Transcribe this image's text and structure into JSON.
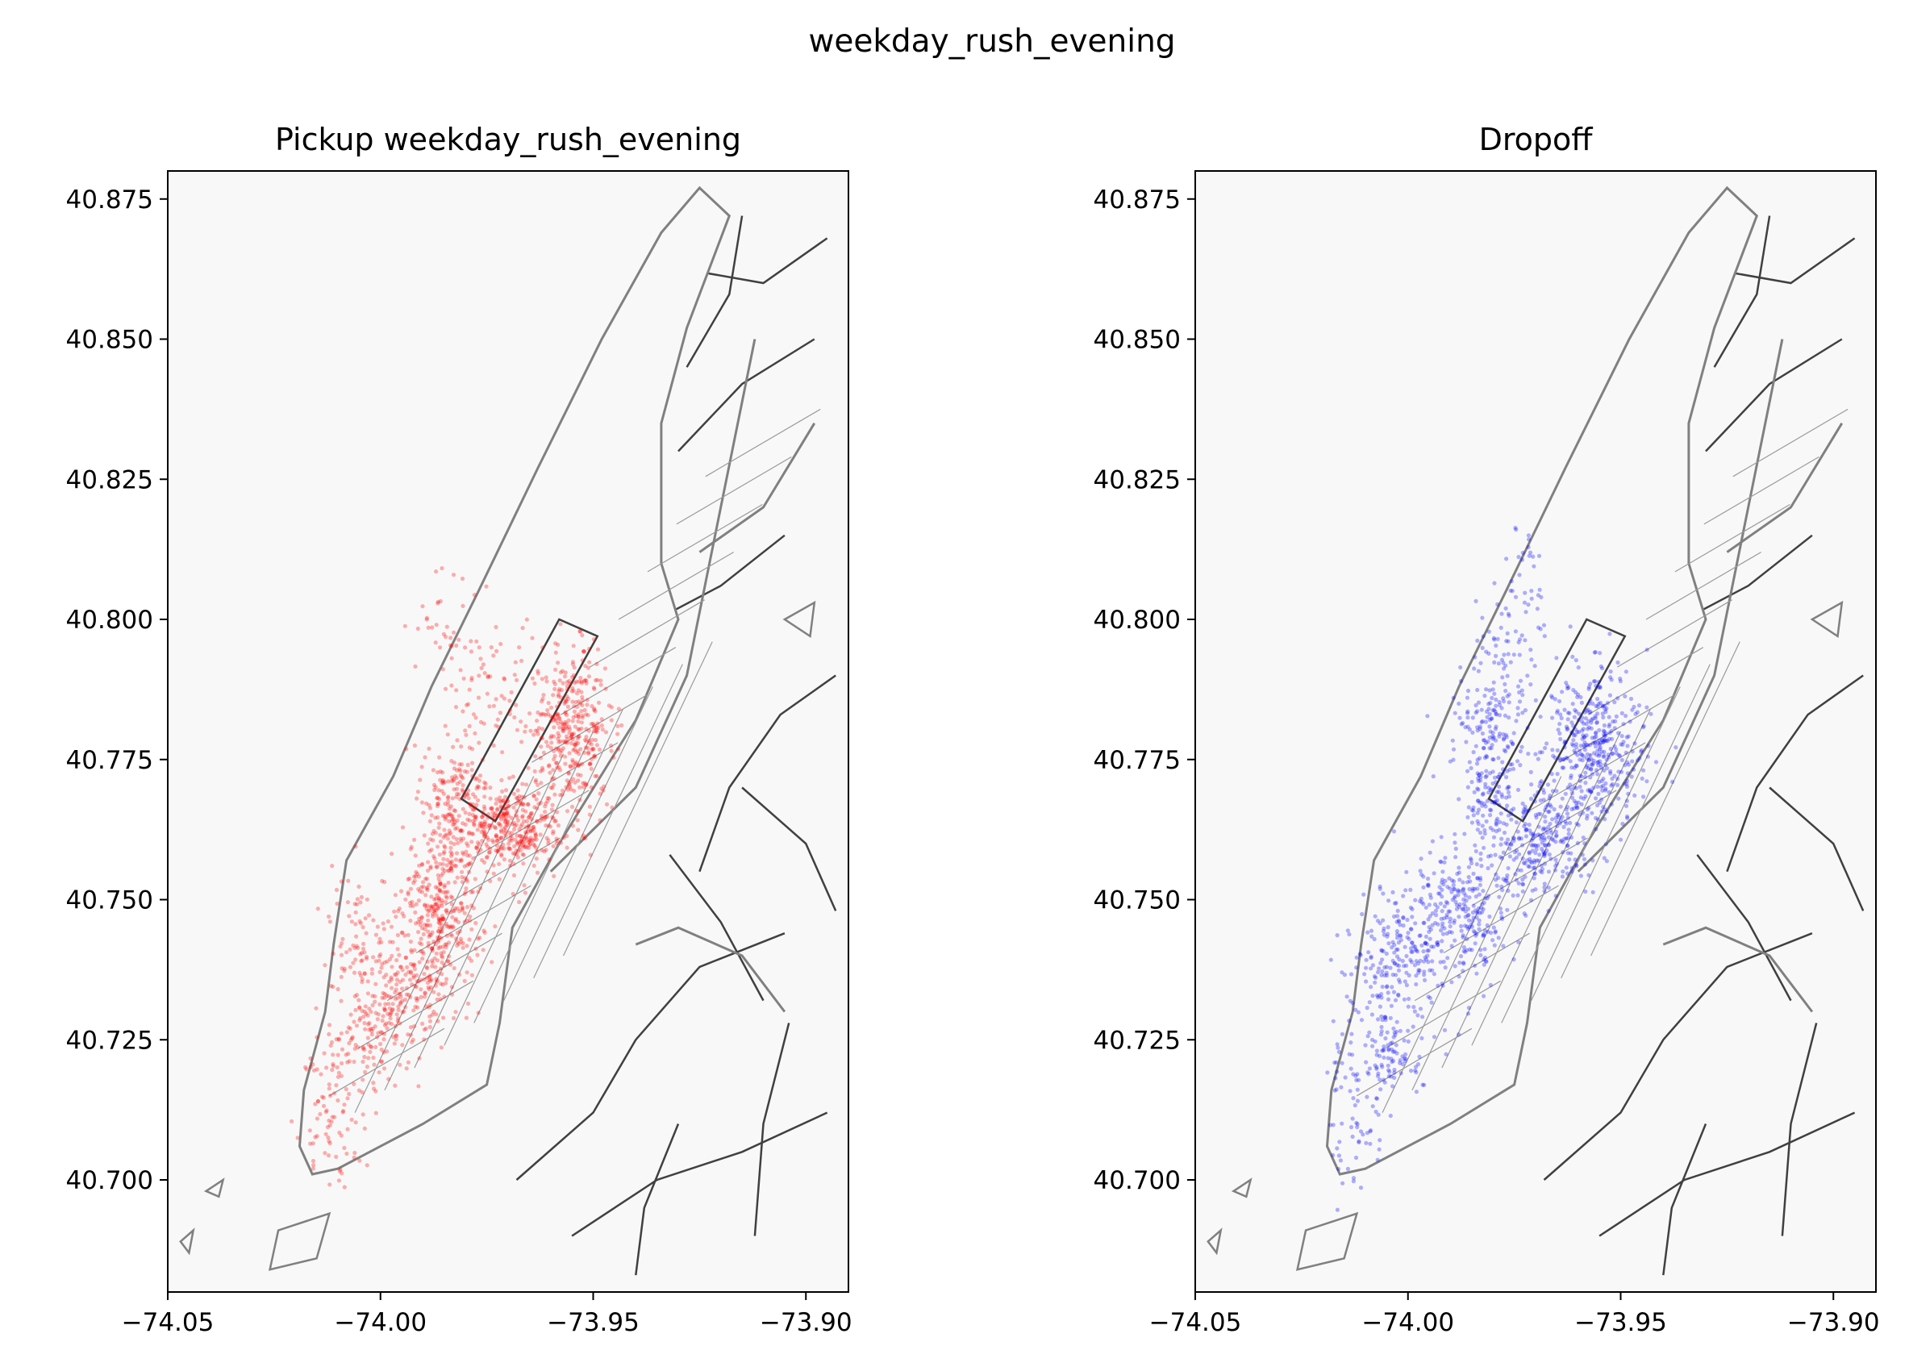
{
  "figure": {
    "suptitle": "weekday_rush_evening"
  },
  "colors": {
    "background": "#f8f8f8",
    "outline": "#808080",
    "zone_line": "#404040",
    "minor_line": "#9a9a9a"
  },
  "chart_data": [
    {
      "type": "scatter",
      "title": "Pickup weekday_rush_evening",
      "xlim": [
        -74.05,
        -73.89
      ],
      "ylim": [
        40.68,
        40.88
      ],
      "xticks": [
        -74.05,
        -74.0,
        -73.95,
        -73.9
      ],
      "xtick_labels": [
        "−74.05",
        "−74.00",
        "−73.95",
        "−73.90"
      ],
      "yticks": [
        40.7,
        40.725,
        40.75,
        40.775,
        40.8,
        40.825,
        40.85,
        40.875
      ],
      "ytick_labels": [
        "40.700",
        "40.725",
        "40.750",
        "40.775",
        "40.800",
        "40.825",
        "40.850",
        "40.875"
      ],
      "grid": false,
      "series": [
        {
          "color": "#ff0000",
          "alpha": 0.3,
          "clusters": [
            {
              "x": -73.955,
              "y": 40.78,
              "spread": [
                0.005,
                0.007
              ],
              "count": 380
            },
            {
              "x": -73.969,
              "y": 40.763,
              "spread": [
                0.006,
                0.004
              ],
              "count": 340
            },
            {
              "x": -73.982,
              "y": 40.766,
              "spread": [
                0.004,
                0.007
              ],
              "count": 220
            },
            {
              "x": -73.986,
              "y": 40.748,
              "spread": [
                0.005,
                0.006
              ],
              "count": 280
            },
            {
              "x": -73.993,
              "y": 40.736,
              "spread": [
                0.007,
                0.006
              ],
              "count": 220
            },
            {
              "x": -74.002,
              "y": 40.726,
              "spread": [
                0.005,
                0.005
              ],
              "count": 120
            },
            {
              "x": -74.011,
              "y": 40.712,
              "spread": [
                0.004,
                0.006
              ],
              "count": 90
            },
            {
              "x": -73.974,
              "y": 40.787,
              "spread": [
                0.006,
                0.006
              ],
              "count": 70
            },
            {
              "x": -73.985,
              "y": 40.801,
              "spread": [
                0.004,
                0.006
              ],
              "count": 35
            },
            {
              "x": -74.007,
              "y": 40.744,
              "spread": [
                0.004,
                0.006
              ],
              "count": 60
            }
          ]
        }
      ]
    },
    {
      "type": "scatter",
      "title": "Dropoff",
      "xlim": [
        -74.05,
        -73.89
      ],
      "ylim": [
        40.68,
        40.88
      ],
      "xticks": [
        -74.05,
        -74.0,
        -73.95,
        -73.9
      ],
      "xtick_labels": [
        "−74.05",
        "−74.00",
        "−73.95",
        "−73.90"
      ],
      "yticks": [
        40.7,
        40.725,
        40.75,
        40.775,
        40.8,
        40.825,
        40.85,
        40.875
      ],
      "ytick_labels": [
        "40.700",
        "40.725",
        "40.750",
        "40.775",
        "40.800",
        "40.825",
        "40.850",
        "40.875"
      ],
      "grid": false,
      "series": [
        {
          "color": "#0000ff",
          "alpha": 0.3,
          "clusters": [
            {
              "x": -73.956,
              "y": 40.777,
              "spread": [
                0.006,
                0.007
              ],
              "count": 420
            },
            {
              "x": -73.97,
              "y": 40.761,
              "spread": [
                0.006,
                0.005
              ],
              "count": 260
            },
            {
              "x": -73.981,
              "y": 40.775,
              "spread": [
                0.004,
                0.008
              ],
              "count": 200
            },
            {
              "x": -73.988,
              "y": 40.748,
              "spread": [
                0.006,
                0.006
              ],
              "count": 260
            },
            {
              "x": -74.002,
              "y": 40.74,
              "spread": [
                0.006,
                0.006
              ],
              "count": 200
            },
            {
              "x": -74.005,
              "y": 40.724,
              "spread": [
                0.005,
                0.005
              ],
              "count": 120
            },
            {
              "x": -74.012,
              "y": 40.712,
              "spread": [
                0.004,
                0.006
              ],
              "count": 60
            },
            {
              "x": -73.978,
              "y": 40.79,
              "spread": [
                0.005,
                0.006
              ],
              "count": 80
            },
            {
              "x": -73.972,
              "y": 40.805,
              "spread": [
                0.004,
                0.005
              ],
              "count": 35
            }
          ]
        }
      ]
    }
  ]
}
